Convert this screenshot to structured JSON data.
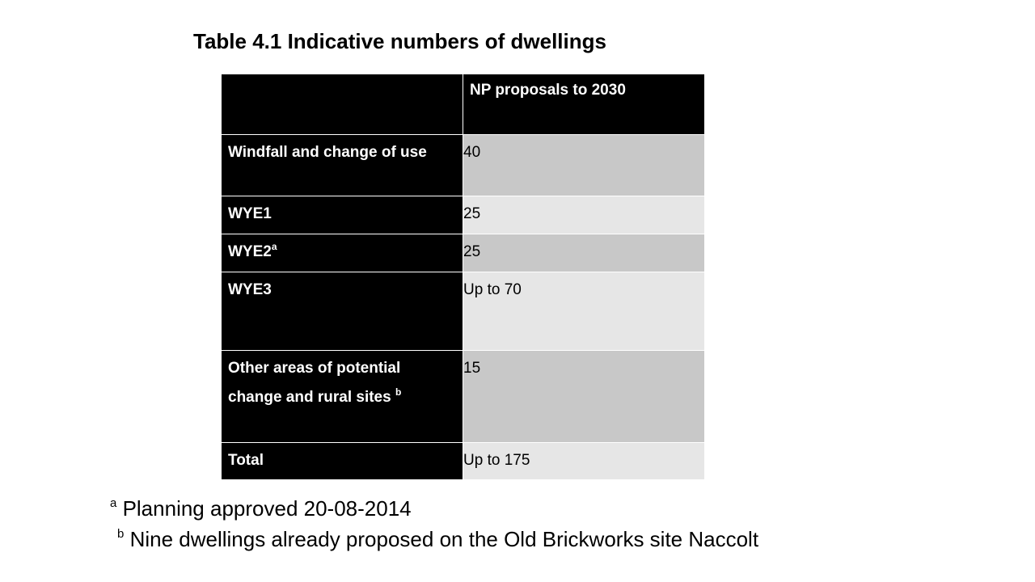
{
  "title": "Table 4.1 Indicative numbers of dwellings",
  "table": {
    "header": {
      "corner": "",
      "column": "NP proposals to 2030"
    },
    "rows": [
      {
        "label": "Windfall and change of use",
        "sup": "",
        "value": "40"
      },
      {
        "label": "WYE1",
        "sup": "",
        "value": "25"
      },
      {
        "label": "WYE2",
        "sup": "a",
        "value": "25"
      },
      {
        "label": "WYE3",
        "sup": "",
        "value": "Up to 70"
      },
      {
        "label": "Other areas of potential change and rural sites ",
        "sup": "b",
        "value": "15"
      },
      {
        "label": "Total",
        "sup": "",
        "value": "Up to 175"
      }
    ]
  },
  "notes": [
    {
      "marker": "a",
      "text": " Planning approved 20-08-2014"
    },
    {
      "marker": "b",
      "text": " Nine dwellings already proposed on the Old Brickworks site Naccolt"
    }
  ],
  "colors": {
    "label_bg": "#000000",
    "value_dark_bg": "#c8c8c8",
    "value_light_bg": "#e6e6e6"
  }
}
